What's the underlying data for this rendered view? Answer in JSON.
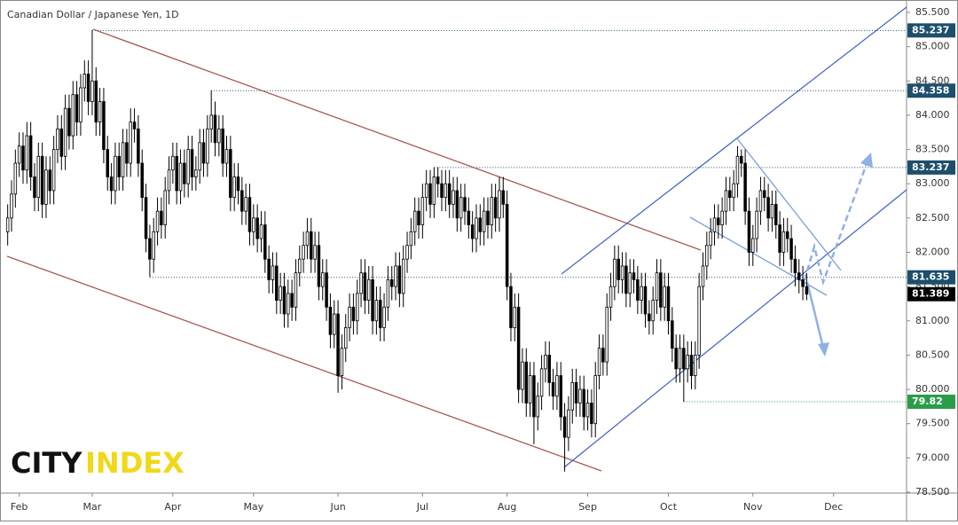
{
  "chart_data": {
    "type": "candlestick",
    "title": "Canadian Dollar / Japanese Yen, 1D",
    "logo": {
      "first": "CITY",
      "second": "INDEX"
    },
    "up_color": "#ffffff",
    "down_color": "#000000",
    "xlim": [
      -2,
      234
    ],
    "xticks": [
      {
        "value": 3,
        "label": "Feb"
      },
      {
        "value": 22,
        "label": "Mar"
      },
      {
        "value": 43,
        "label": "Apr"
      },
      {
        "value": 64,
        "label": "May"
      },
      {
        "value": 86,
        "label": "Jun"
      },
      {
        "value": 108,
        "label": "Jul"
      },
      {
        "value": 130,
        "label": "Aug"
      },
      {
        "value": 151,
        "label": "Sep"
      },
      {
        "value": 172,
        "label": "Oct"
      },
      {
        "value": 194,
        "label": "Nov"
      },
      {
        "value": 215,
        "label": "Dec"
      }
    ],
    "ylim": [
      78.487,
      85.681
    ],
    "yticks": [
      {
        "value": 78.5,
        "label": "78.500"
      },
      {
        "value": 79,
        "label": "79.000"
      },
      {
        "value": 79.5,
        "label": "79.500"
      },
      {
        "value": 80,
        "label": "80.000"
      },
      {
        "value": 80.5,
        "label": "80.500"
      },
      {
        "value": 81,
        "label": "81.000"
      },
      {
        "value": 81.5,
        "label": "81.500"
      },
      {
        "value": 82,
        "label": "82.000"
      },
      {
        "value": 82.5,
        "label": "82.500"
      },
      {
        "value": 83,
        "label": "83.000"
      },
      {
        "value": 83.5,
        "label": "83.500"
      },
      {
        "value": 84,
        "label": "84.000"
      },
      {
        "value": 84.5,
        "label": "84.500"
      },
      {
        "value": 85,
        "label": "85.000"
      },
      {
        "value": 85.5,
        "label": "85.500"
      }
    ],
    "levels": [
      {
        "value": 85.237,
        "color": "#1d4f6b"
      },
      {
        "value": 84.358,
        "color": "#1d4f6b"
      },
      {
        "value": 83.237,
        "color": "#1d4f6b"
      },
      {
        "value": 81.635,
        "color": "#1d4f6b"
      },
      {
        "value": 79.82,
        "color": "#2a9d4b"
      }
    ],
    "last_color": "#000000",
    "open": [
      82.3,
      82.5,
      82.85,
      83.3,
      83.55,
      83.2,
      83.7,
      83.1,
      82.8,
      83.4,
      82.7,
      83.2,
      82.9,
      83.5,
      83.8,
      83.4,
      84.1,
      83.7,
      84.3,
      83.9,
      84.4,
      84.6,
      84.2,
      84.5,
      83.9,
      84.2,
      83.5,
      83.1,
      82.9,
      83.4,
      83.1,
      83.6,
      83.3,
      83.9,
      83.8,
      83.3,
      82.8,
      82.2,
      81.9,
      82.3,
      82.6,
      82.4,
      82.9,
      83.2,
      83.4,
      82.9,
      83.3,
      83,
      83.5,
      83.1,
      83.2,
      83.6,
      83.3,
      83.8,
      84,
      83.6,
      83.8,
      83.3,
      83.5,
      82.8,
      83.1,
      82.9,
      82.6,
      82.8,
      82.3,
      82.5,
      82.2,
      82.4,
      81.9,
      81.6,
      81.8,
      81.3,
      81.5,
      81.1,
      81.4,
      81.2,
      81.7,
      81.9,
      82.1,
      82.3,
      81.9,
      82.1,
      81.5,
      81.7,
      81.2,
      80.8,
      81.1,
      80.2,
      80.6,
      80.9,
      81.2,
      81,
      81.4,
      81.7,
      81.3,
      81.6,
      81,
      81.3,
      80.9,
      81.2,
      81.6,
      81.5,
      81.8,
      81.4,
      81.9,
      82.1,
      82.3,
      82.6,
      82.4,
      82.8,
      83,
      82.7,
      83.1,
      83,
      82.8,
      83,
      82.7,
      82.9,
      82.5,
      82.8,
      82.6,
      82.4,
      82.2,
      82.5,
      82.3,
      82.6,
      82.4,
      82.8,
      82.5,
      82.9,
      82.7,
      81.5,
      80.9,
      81.2,
      80,
      80.4,
      79.8,
      80.2,
      79.6,
      79.9,
      80.3,
      80.5,
      80.1,
      79.9,
      80.2,
      79.6,
      79.3,
      79.7,
      80.1,
      79.8,
      80,
      79.6,
      79.8,
      79.5,
      80.2,
      80.6,
      80.4,
      81.2,
      81.5,
      81.9,
      81.6,
      81.8,
      81.4,
      81.7,
      81.6,
      81.3,
      81.5,
      81.1,
      81,
      81.3,
      81.7,
      81.2,
      81.5,
      81,
      80.6,
      80.3,
      80.6,
      80.3,
      80.5,
      80.2,
      80.5,
      81.5,
      81.8,
      82.1,
      82.3,
      82.5,
      82.4,
      82.6,
      82.9,
      82.8,
      83,
      83.4,
      83.3,
      82.6,
      82,
      82.2,
      82.6,
      82.9,
      82.8,
      82.5,
      82.7,
      82.4,
      82,
      82.3,
      82.2,
      81.9,
      81.7,
      81.6,
      81.5
    ],
    "high": [
      82.7,
      83.05,
      83.5,
      83.75,
      83.75,
      83.9,
      83.9,
      83.3,
      83.6,
      83.6,
      83.4,
      83.4,
      83.7,
      84,
      84,
      84.3,
      84.3,
      84.5,
      84.5,
      84.6,
      84.8,
      84.8,
      85.24,
      84.7,
      84.4,
      84.4,
      83.7,
      83.3,
      83.6,
      83.6,
      83.8,
      83.8,
      84.1,
      84.1,
      84,
      83.5,
      83,
      82.4,
      82.5,
      82.8,
      82.8,
      83.1,
      83.4,
      83.6,
      83.6,
      83.5,
      83.5,
      83.7,
      83.7,
      83.4,
      83.8,
      83.8,
      84,
      84.36,
      84.2,
      84,
      84,
      83.7,
      83.7,
      83.3,
      83.3,
      83.1,
      83,
      83,
      82.7,
      82.7,
      82.6,
      82.6,
      82.1,
      82,
      82,
      81.7,
      81.7,
      81.6,
      81.6,
      81.9,
      82.1,
      82.3,
      82.5,
      82.5,
      82.3,
      82.3,
      81.9,
      81.9,
      81.4,
      81.3,
      81.3,
      80.8,
      81.1,
      81.4,
      81.4,
      81.6,
      81.9,
      81.9,
      81.8,
      81.8,
      81.5,
      81.5,
      81.4,
      81.8,
      81.8,
      82,
      82,
      82.1,
      82.3,
      82.5,
      82.8,
      82.8,
      83,
      83.2,
      83.2,
      83.24,
      83.24,
      83.2,
      83.2,
      83.2,
      83.1,
      83.1,
      83,
      83,
      82.8,
      82.6,
      82.7,
      82.7,
      82.8,
      82.8,
      83,
      83,
      83.1,
      83.1,
      82.9,
      81.7,
      81.4,
      81.4,
      80.6,
      80.6,
      80.4,
      80.4,
      80.1,
      80.5,
      80.7,
      80.7,
      80.3,
      80.4,
      80.4,
      79.8,
      79.9,
      80.3,
      80.3,
      80.2,
      80.2,
      80,
      80,
      80.4,
      80.8,
      80.8,
      81.4,
      81.7,
      82.1,
      82.1,
      82,
      82,
      81.9,
      81.9,
      81.8,
      81.7,
      81.7,
      81.3,
      81.5,
      81.9,
      81.9,
      81.7,
      81.7,
      81.2,
      80.8,
      80.8,
      80.8,
      80.7,
      80.7,
      80.7,
      81.7,
      82,
      82.3,
      82.5,
      82.7,
      82.7,
      82.8,
      83.1,
      83.1,
      83.2,
      83.55,
      83.5,
      83.5,
      82.8,
      82.4,
      82.8,
      83.1,
      83.1,
      83,
      82.9,
      82.9,
      82.6,
      82.5,
      82.5,
      82.4,
      82.1,
      81.9,
      81.8,
      81.7
    ],
    "low": [
      82.1,
      82.3,
      82.65,
      83.1,
      83,
      83,
      82.9,
      82.6,
      82.6,
      82.5,
      82.5,
      82.7,
      82.7,
      83.3,
      83.2,
      83.2,
      83.5,
      83.5,
      83.7,
      83.7,
      84.2,
      84,
      84,
      83.7,
      83.7,
      83.3,
      82.9,
      82.7,
      82.7,
      82.9,
      82.9,
      83.1,
      83.1,
      83.6,
      83.1,
      82.6,
      82,
      81.64,
      81.7,
      82.1,
      82.2,
      82.2,
      82.7,
      83,
      82.7,
      82.7,
      82.8,
      82.8,
      82.9,
      82.9,
      83,
      83.1,
      83.1,
      83.6,
      83.4,
      83.4,
      83.1,
      83.1,
      82.6,
      82.6,
      82.7,
      82.4,
      82.4,
      82.1,
      82.1,
      82,
      82,
      81.7,
      81.4,
      81.4,
      81.1,
      81.1,
      80.9,
      80.9,
      81,
      81,
      81.5,
      81.7,
      81.9,
      81.7,
      81.7,
      81.3,
      81.3,
      81,
      80.6,
      80.6,
      79.95,
      80,
      80.4,
      80.7,
      80.8,
      80.8,
      81.2,
      81.1,
      81.1,
      80.8,
      80.8,
      80.7,
      80.7,
      81,
      81.3,
      81.3,
      81.2,
      81.2,
      81.7,
      81.9,
      82.1,
      82.2,
      82.2,
      82.6,
      82.5,
      82.5,
      82.8,
      82.6,
      82.6,
      82.5,
      82.5,
      82.3,
      82.3,
      82.4,
      82.2,
      82,
      82,
      82.1,
      82.1,
      82.2,
      82.2,
      82.3,
      82.3,
      82.5,
      81.3,
      80.7,
      80.7,
      79.8,
      79.8,
      79.6,
      79.6,
      79.2,
      79.4,
      79.7,
      80.1,
      79.9,
      79.7,
      79.7,
      79.4,
      78.8,
      79.1,
      79.5,
      79.6,
      79.6,
      79.4,
      79.4,
      79.3,
      79.3,
      80,
      80.2,
      80.2,
      81,
      81.3,
      81.4,
      81.4,
      81.2,
      81.2,
      81.4,
      81.1,
      81.1,
      80.9,
      80.8,
      80.8,
      81.1,
      81,
      81,
      80.8,
      80.4,
      80.1,
      80.1,
      79.82,
      80.1,
      80,
      80,
      80.3,
      81.3,
      81.6,
      81.9,
      82.1,
      82.2,
      82.2,
      82.4,
      82.6,
      82.6,
      82.8,
      83.1,
      82.4,
      81.8,
      81.8,
      82,
      82.4,
      82.6,
      82.3,
      82.3,
      82.2,
      81.8,
      81.8,
      82,
      81.7,
      81.5,
      81.4,
      81.3,
      81.3
    ],
    "close": [
      82.5,
      82.85,
      83.3,
      83.55,
      83.2,
      83.7,
      83.1,
      82.8,
      83.4,
      82.7,
      83.2,
      82.9,
      83.5,
      83.8,
      83.4,
      84.1,
      83.7,
      84.3,
      83.9,
      84.4,
      84.6,
      84.2,
      84.5,
      83.9,
      84.2,
      83.5,
      83.1,
      82.9,
      83.4,
      83.1,
      83.6,
      83.3,
      83.9,
      83.8,
      83.3,
      82.8,
      82.2,
      81.9,
      82.3,
      82.6,
      82.4,
      82.9,
      83.2,
      83.4,
      82.9,
      83.3,
      83,
      83.5,
      83.1,
      83.2,
      83.6,
      83.3,
      83.8,
      84,
      83.6,
      83.8,
      83.3,
      83.5,
      82.8,
      83.1,
      82.9,
      82.6,
      82.8,
      82.3,
      82.5,
      82.2,
      82.4,
      81.9,
      81.6,
      81.8,
      81.3,
      81.5,
      81.1,
      81.4,
      81.2,
      81.7,
      81.9,
      82.1,
      82.3,
      81.9,
      82.1,
      81.5,
      81.7,
      81.2,
      80.8,
      81.1,
      80.2,
      80.6,
      80.9,
      81.2,
      81,
      81.4,
      81.7,
      81.3,
      81.6,
      81,
      81.3,
      80.9,
      81.2,
      81.6,
      81.5,
      81.8,
      81.4,
      81.9,
      82.1,
      82.3,
      82.6,
      82.4,
      82.8,
      83,
      82.7,
      83.1,
      83,
      82.8,
      83,
      82.7,
      82.9,
      82.5,
      82.8,
      82.6,
      82.4,
      82.2,
      82.5,
      82.3,
      82.6,
      82.4,
      82.8,
      82.5,
      82.9,
      82.7,
      81.5,
      80.9,
      81.2,
      80,
      80.4,
      79.8,
      80.2,
      79.6,
      79.9,
      80.3,
      80.5,
      80.1,
      79.9,
      80.2,
      79.6,
      79.3,
      79.7,
      80.1,
      79.8,
      80,
      79.6,
      79.8,
      79.5,
      80.2,
      80.6,
      80.4,
      81.2,
      81.5,
      81.9,
      81.6,
      81.8,
      81.4,
      81.7,
      81.6,
      81.3,
      81.5,
      81.1,
      81,
      81.3,
      81.7,
      81.2,
      81.5,
      81,
      80.6,
      80.3,
      80.6,
      80.3,
      80.5,
      80.2,
      80.5,
      81.5,
      81.8,
      82.1,
      82.3,
      82.5,
      82.4,
      82.6,
      82.9,
      82.8,
      83,
      83.4,
      83.3,
      82.6,
      82,
      82.2,
      82.6,
      82.9,
      82.8,
      82.5,
      82.7,
      82.4,
      82,
      82.3,
      82.2,
      81.9,
      81.7,
      81.6,
      81.5,
      81.389
    ]
  }
}
